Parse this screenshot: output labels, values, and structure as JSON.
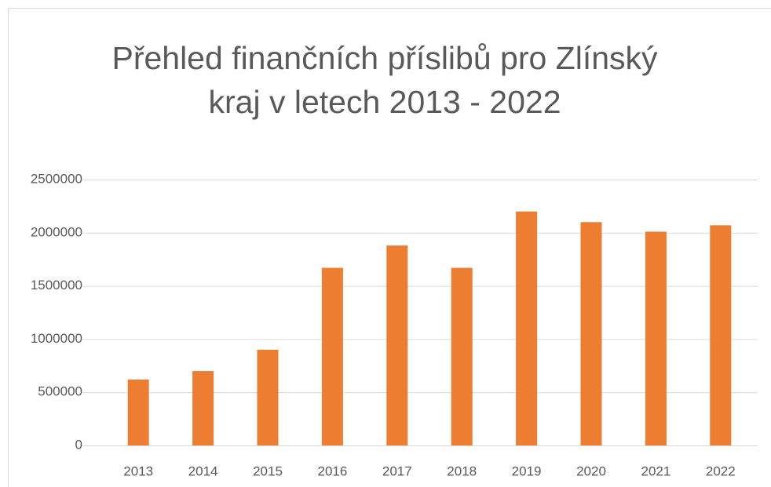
{
  "chart_data": {
    "type": "bar",
    "title": "Přehled finančních příslibů pro Zlínský kraj v letech 2013 - 2022",
    "categories": [
      "2013",
      "2014",
      "2015",
      "2016",
      "2017",
      "2018",
      "2019",
      "2020",
      "2021",
      "2022"
    ],
    "values": [
      620000,
      700000,
      900000,
      1670000,
      1880000,
      1670000,
      2200000,
      2100000,
      2010000,
      2070000
    ],
    "color": "#ed7d31",
    "ylim": [
      0,
      2500000
    ],
    "yticks": [
      0,
      500000,
      1000000,
      1500000,
      2000000,
      2500000
    ],
    "grid": true
  }
}
